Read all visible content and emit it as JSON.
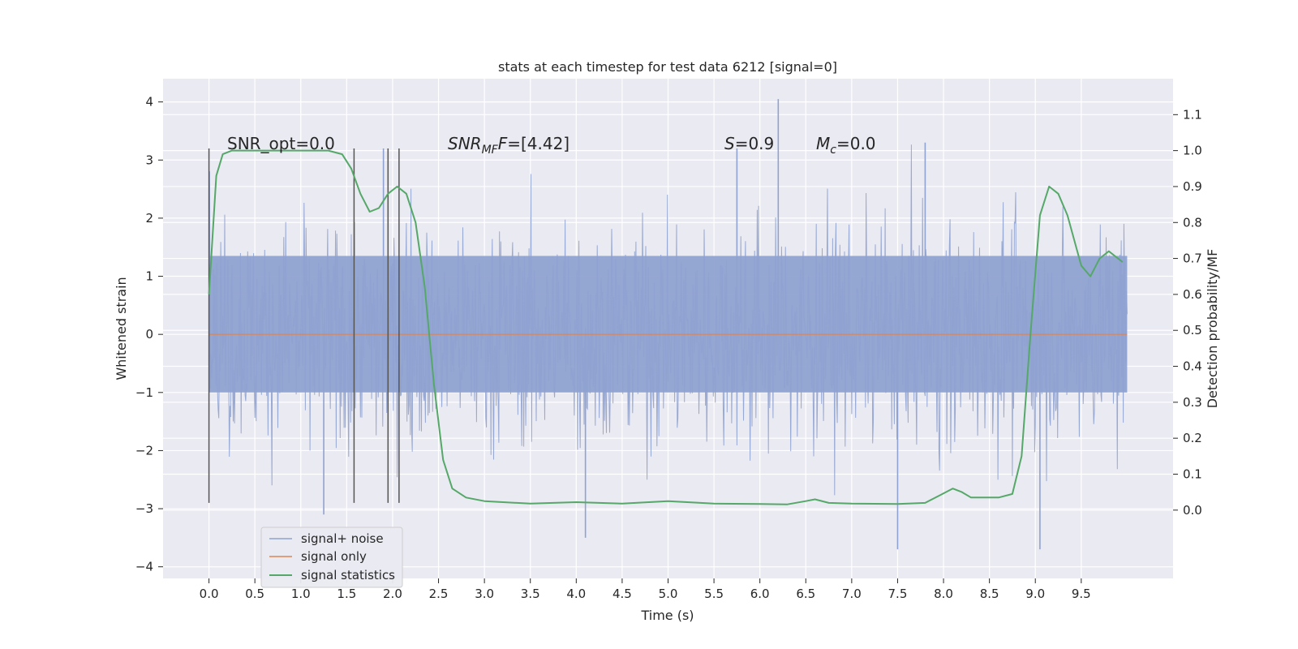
{
  "chart_data": {
    "type": "line",
    "title": "stats at each timestep for test data 6212 [signal=0]",
    "xlabel": "Time (s)",
    "ylabel": "Whitened strain",
    "y2label": "Detection probability/MF",
    "xlim": [
      -0.5,
      10.5
    ],
    "ylim": [
      -4.2,
      4.4
    ],
    "y2lim": [
      -0.19,
      1.2
    ],
    "xticks": [
      "0.0",
      "0.5",
      "1.0",
      "1.5",
      "2.0",
      "2.5",
      "3.0",
      "3.5",
      "4.0",
      "4.5",
      "5.0",
      "5.5",
      "6.0",
      "6.5",
      "7.0",
      "7.5",
      "8.0",
      "8.5",
      "9.0",
      "9.5"
    ],
    "yticks": [
      "4",
      "3",
      "2",
      "1",
      "0",
      "−1",
      "−2",
      "−3",
      "−4"
    ],
    "y2ticks": [
      "1.1",
      "1.0",
      "0.9",
      "0.8",
      "0.7",
      "0.6",
      "0.5",
      "0.4",
      "0.3",
      "0.2",
      "0.1",
      "0.0"
    ],
    "grid": true,
    "legend_position": "bottom-left",
    "series": [
      {
        "name": "signal+ noise",
        "color": "#8fa2d0",
        "kind": "noise",
        "x_range": [
          0.0,
          10.0
        ],
        "band": [
          -1.0,
          1.35
        ],
        "spike_range": [
          -3.7,
          4.05
        ],
        "notable_peaks": [
          [
            6.2,
            4.05
          ],
          [
            7.8,
            3.3
          ],
          [
            1.9,
            3.2
          ],
          [
            5.75,
            3.2
          ],
          [
            1.25,
            -3.1
          ],
          [
            7.5,
            -3.7
          ],
          [
            9.05,
            -3.7
          ],
          [
            4.1,
            -3.5
          ]
        ]
      },
      {
        "name": "signal only",
        "color": "#dd8452",
        "kind": "flat",
        "x_range": [
          0.0,
          10.0
        ],
        "value": 0.0
      },
      {
        "name": "signal statistics",
        "color": "#55a868",
        "kind": "curve",
        "axis": "y2",
        "points": [
          [
            0.0,
            0.6
          ],
          [
            0.08,
            0.93
          ],
          [
            0.15,
            0.99
          ],
          [
            0.25,
            1.0
          ],
          [
            1.0,
            1.0
          ],
          [
            1.3,
            1.0
          ],
          [
            1.45,
            0.99
          ],
          [
            1.55,
            0.95
          ],
          [
            1.65,
            0.88
          ],
          [
            1.75,
            0.83
          ],
          [
            1.85,
            0.84
          ],
          [
            1.95,
            0.88
          ],
          [
            2.05,
            0.9
          ],
          [
            2.15,
            0.88
          ],
          [
            2.25,
            0.8
          ],
          [
            2.35,
            0.62
          ],
          [
            2.45,
            0.35
          ],
          [
            2.55,
            0.14
          ],
          [
            2.65,
            0.06
          ],
          [
            2.8,
            0.035
          ],
          [
            3.0,
            0.025
          ],
          [
            3.5,
            0.018
          ],
          [
            4.0,
            0.022
          ],
          [
            4.5,
            0.018
          ],
          [
            5.0,
            0.025
          ],
          [
            5.5,
            0.018
          ],
          [
            6.0,
            0.017
          ],
          [
            6.3,
            0.016
          ],
          [
            6.5,
            0.025
          ],
          [
            6.6,
            0.03
          ],
          [
            6.75,
            0.02
          ],
          [
            7.0,
            0.018
          ],
          [
            7.5,
            0.017
          ],
          [
            7.8,
            0.02
          ],
          [
            7.95,
            0.04
          ],
          [
            8.1,
            0.06
          ],
          [
            8.2,
            0.05
          ],
          [
            8.3,
            0.035
          ],
          [
            8.6,
            0.035
          ],
          [
            8.75,
            0.045
          ],
          [
            8.85,
            0.15
          ],
          [
            8.95,
            0.5
          ],
          [
            9.05,
            0.82
          ],
          [
            9.15,
            0.9
          ],
          [
            9.25,
            0.88
          ],
          [
            9.35,
            0.82
          ],
          [
            9.5,
            0.68
          ],
          [
            9.6,
            0.65
          ],
          [
            9.7,
            0.7
          ],
          [
            9.8,
            0.72
          ],
          [
            9.95,
            0.69
          ]
        ]
      }
    ],
    "vertical_markers": [
      0.0,
      1.58,
      1.95,
      2.07
    ],
    "vertical_marker_range": [
      -2.9,
      3.2
    ],
    "annotations": [
      {
        "text_key": "snr_opt",
        "x": 0.2,
        "y": 3.2
      },
      {
        "text_key": "snr_mf",
        "x": 2.6,
        "y": 3.2
      },
      {
        "text_key": "s_val",
        "x": 5.6,
        "y": 3.2
      },
      {
        "text_key": "mc_val",
        "x": 6.6,
        "y": 3.2
      }
    ]
  },
  "annotations_text": {
    "snr_opt": "SNR_opt=0.0",
    "snr_mf_main": "SNR",
    "snr_mf_sub": "MF",
    "snr_mf_val": "=[4.42]",
    "s_main": "S",
    "s_val": "=0.9",
    "mc_main": "M",
    "mc_sub": "c",
    "mc_val": "=0.0"
  }
}
